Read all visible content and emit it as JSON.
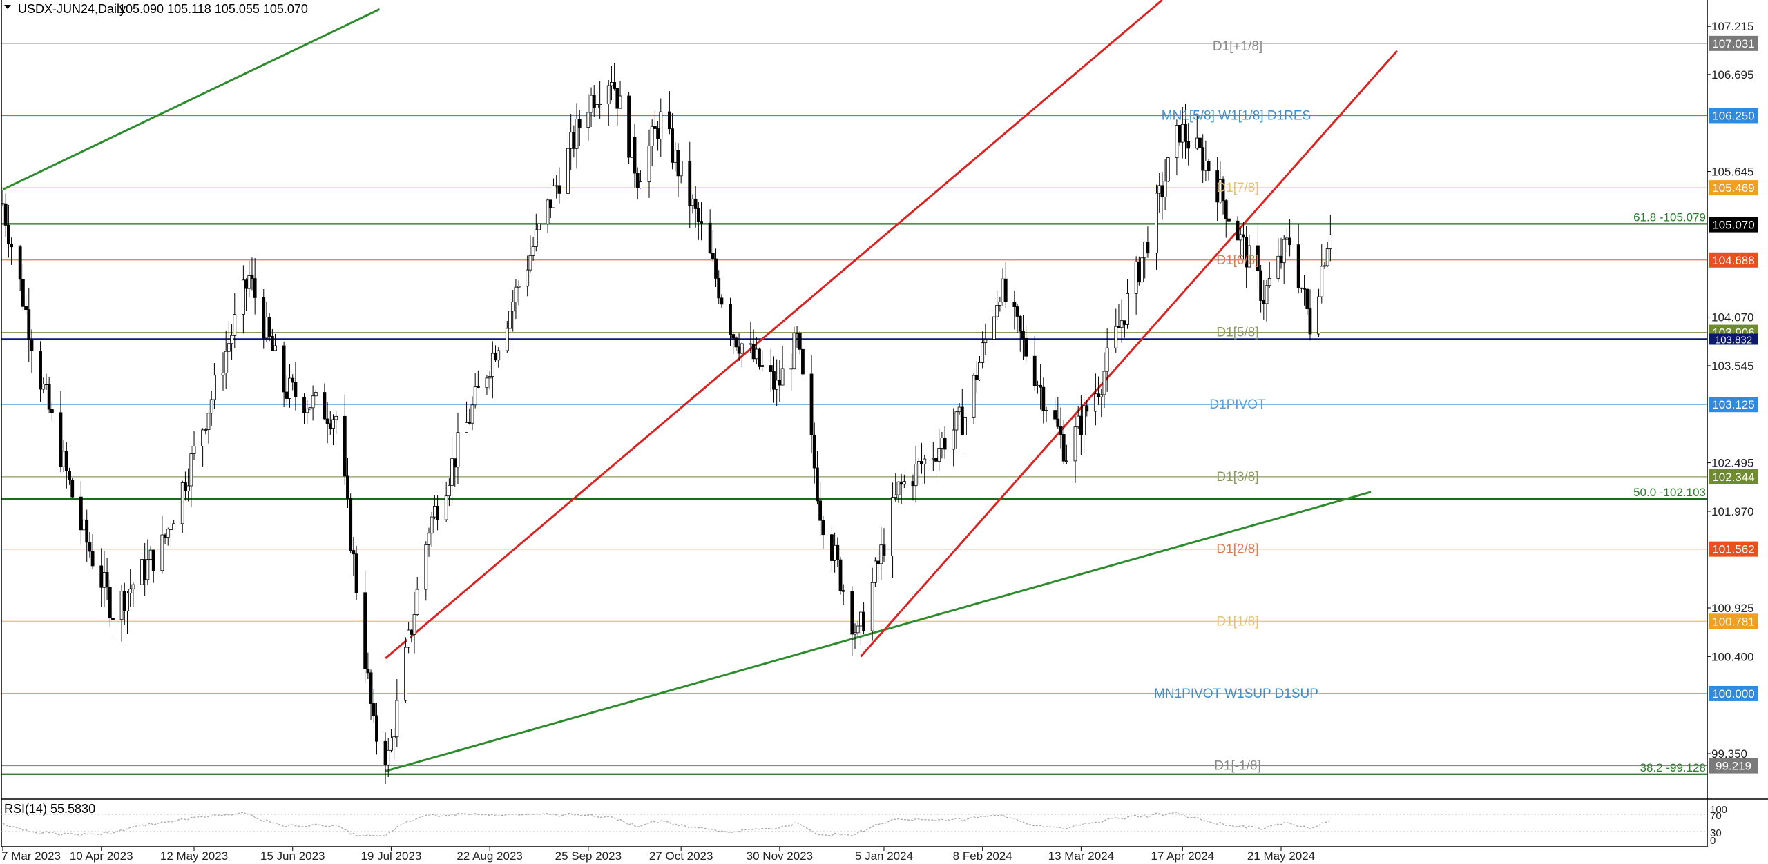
{
  "header": {
    "symbol": "USDX-JUN24,Daily",
    "ohlc": "105.090 105.118 105.055 105.070"
  },
  "rsi_panel": {
    "label": "RSI(14) 55.5830",
    "axis_labels": [
      "100",
      "70",
      "30",
      "0"
    ]
  },
  "chart_data": {
    "type": "candlestick",
    "title": "USDX-JUN24,Daily",
    "x_tick_labels": [
      "7 Mar 2023",
      "10 Apr 2023",
      "12 May 2023",
      "15 Jun 2023",
      "19 Jul 2023",
      "22 Aug 2023",
      "25 Sep 2023",
      "27 Oct 2023",
      "30 Nov 2023",
      "5 Jan 2024",
      "8 Feb 2024",
      "13 Mar 2024",
      "17 Apr 2024",
      "21 May 2024"
    ],
    "y_tick_labels": [
      "107.215",
      "106.695",
      "105.645",
      "104.070",
      "103.545",
      "102.495",
      "101.970",
      "100.925",
      "100.400",
      "99.350"
    ],
    "ylim": [
      98.88,
      107.5
    ],
    "last_price": "105.070",
    "levels": [
      {
        "label": "D1[+1/8]",
        "tag": "107.031",
        "value": 107.031,
        "color": "#888888",
        "tag_color": "#7a7a7a"
      },
      {
        "label": "MN1[5/8] W1[1/8] D1RES",
        "tag": "106.250",
        "value": 106.25,
        "color": "#3c8fd0",
        "tag_color": "#2f8ae0"
      },
      {
        "label": "D1[7/8]",
        "tag": "105.469",
        "value": 105.469,
        "color": "#e8c36a",
        "tag_color": "#f0a020"
      },
      {
        "label": "D1[6/8]",
        "tag": "104.688",
        "value": 104.688,
        "color": "#e07a50",
        "tag_color": "#e8501e"
      },
      {
        "label": "D1[5/8]",
        "tag": "103.906",
        "value": 103.906,
        "color": "#8a9a60",
        "tag_color": "#6e8c2e"
      },
      {
        "label": "D1PIVOT",
        "tag": "103.125",
        "value": 103.125,
        "color": "#5aa0d8",
        "tag_color": "#2f8ae0"
      },
      {
        "label": "D1[3/8]",
        "tag": "102.344",
        "value": 102.344,
        "color": "#8a9a60",
        "tag_color": "#6e8c2e"
      },
      {
        "label": "D1[2/8]",
        "tag": "101.562",
        "value": 101.562,
        "color": "#e07a50",
        "tag_color": "#e8501e"
      },
      {
        "label": "D1[1/8]",
        "tag": "100.781",
        "value": 100.781,
        "color": "#e8c36a",
        "tag_color": "#f0a020"
      },
      {
        "label": "MN1PIVOT W1SUP D1SUP",
        "tag": "100.000",
        "value": 100.0,
        "color": "#3c8fd0",
        "tag_color": "#2f8ae0"
      },
      {
        "label": "D1[-1/8]",
        "tag": "99.219",
        "value": 99.219,
        "color": "#888888",
        "tag_color": "#7a7a7a"
      }
    ],
    "fib_levels": [
      {
        "label": "61.8 -105.079",
        "value": 105.079
      },
      {
        "label": "50.0 -102.103",
        "value": 102.103
      },
      {
        "label": "38.2 -99.128",
        "value": 99.128
      }
    ],
    "navy_level": {
      "tag": "103.832",
      "value": 103.832
    },
    "trendlines": [
      {
        "color": "#2e8b2e",
        "points": [
          [
            "7 Mar 2023",
            105.45
          ],
          [
            "15 Jul 2023",
            107.4
          ]
        ]
      },
      {
        "color": "#2e8b2e",
        "points": [
          [
            "17 Jul 2023",
            99.16
          ],
          [
            "21 Jun 2024",
            102.18
          ]
        ]
      },
      {
        "color": "#dd2222",
        "points": [
          [
            "17 Jul 2023",
            100.38
          ],
          [
            "10 Apr 2024",
            107.5
          ]
        ]
      },
      {
        "color": "#dd2222",
        "points": [
          [
            "28 Dec 2023",
            100.4
          ],
          [
            "30 Jun 2024",
            106.95
          ]
        ]
      }
    ]
  }
}
